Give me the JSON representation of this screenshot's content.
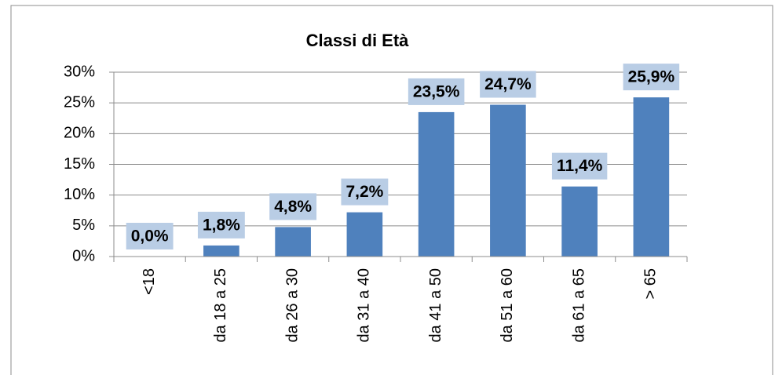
{
  "chart_data": {
    "type": "bar",
    "title": "Classi di Età",
    "categories": [
      "<18",
      "da 18 a 25",
      "da 26 a 30",
      "da 31 a 40",
      "da 41 a 50",
      "da 51 a 60",
      "da 61 a 65",
      "> 65"
    ],
    "values": [
      0.0,
      1.8,
      4.8,
      7.2,
      23.5,
      24.7,
      11.4,
      25.9
    ],
    "value_labels": [
      "0,0%",
      "1,8%",
      "4,8%",
      "7,2%",
      "23,5%",
      "24,7%",
      "11,4%",
      "25,9%"
    ],
    "color": "#4f81bd",
    "ylim": [
      0,
      30
    ],
    "yticks": [
      {
        "value": 0,
        "label": "0%"
      },
      {
        "value": 5,
        "label": "5%"
      },
      {
        "value": 10,
        "label": "10%"
      },
      {
        "value": 15,
        "label": "15%"
      },
      {
        "value": 20,
        "label": "20%"
      },
      {
        "value": 25,
        "label": "25%"
      },
      {
        "value": 30,
        "label": "30%"
      }
    ],
    "grid": true
  }
}
